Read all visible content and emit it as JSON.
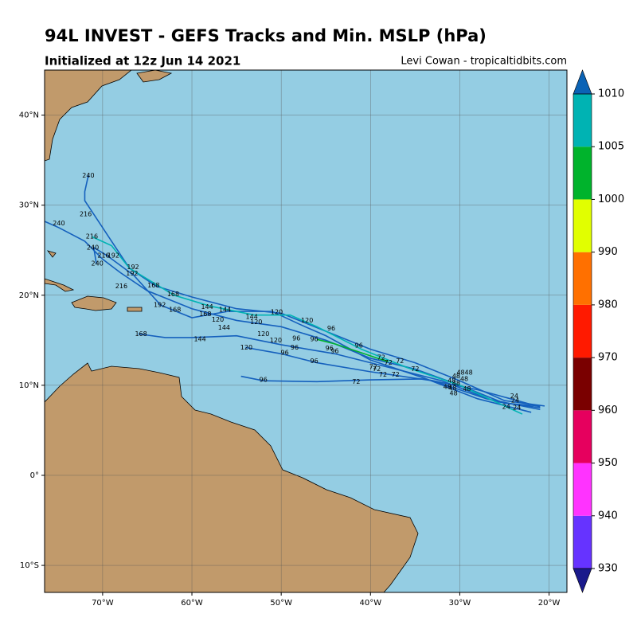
{
  "chart_data": {
    "type": "map",
    "title": "94L INVEST - GEFS Tracks and Min. MSLP (hPa)",
    "subtitle": "Initialized at 12z Jun 14 2021",
    "credit": "Levi Cowan - tropicaltidbits.com",
    "xlim": [
      -76.5,
      -18
    ],
    "ylim": [
      -13,
      45
    ],
    "xticks": [
      {
        "value": -70,
        "label": "70°W"
      },
      {
        "value": -60,
        "label": "60°W"
      },
      {
        "value": -50,
        "label": "50°W"
      },
      {
        "value": -40,
        "label": "40°W"
      },
      {
        "value": -30,
        "label": "30°W"
      },
      {
        "value": -20,
        "label": "20°W"
      }
    ],
    "yticks": [
      {
        "value": -10,
        "label": "10°S"
      },
      {
        "value": 0,
        "label": "0°"
      },
      {
        "value": 10,
        "label": "10°N"
      },
      {
        "value": 20,
        "label": "20°N"
      },
      {
        "value": 30,
        "label": "30°N"
      },
      {
        "value": 40,
        "label": "40°N"
      }
    ],
    "grid": true,
    "colorbar": {
      "ticks": [
        930,
        940,
        950,
        960,
        970,
        980,
        990,
        1000,
        1005,
        1010
      ],
      "colors": [
        "#6633ff",
        "#ff33ff",
        "#e6005e",
        "#7a0000",
        "#ff1a00",
        "#ff7000",
        "#e1ff00",
        "#00b32c",
        "#00b3b3"
      ],
      "under": "#1a1a8c",
      "over": "#0b63b5"
    },
    "tracks": [
      {
        "color": "#1560bd",
        "lon": [
          -20.5,
          -25,
          -30,
          -35,
          -40,
          -45,
          -50,
          -55,
          -60,
          -64,
          -67,
          -69,
          -71,
          -72,
          -72,
          -71.6
        ],
        "lat": [
          7.7,
          8.3,
          10.5,
          12.5,
          14,
          16,
          18,
          18.5,
          19.8,
          21,
          23,
          26,
          29,
          30.5,
          31.5,
          33.3
        ]
      },
      {
        "color": "#1560bd",
        "lon": [
          -21,
          -25,
          -30,
          -35,
          -40,
          -45,
          -50,
          -55,
          -60,
          -65,
          -68,
          -70,
          -72,
          -74.9,
          -76.5
        ],
        "lat": [
          7.7,
          8,
          10,
          11.8,
          13,
          15,
          16.5,
          17.2,
          18.5,
          20.5,
          22.5,
          24,
          26,
          27.5,
          28.2
        ]
      },
      {
        "color": "#1560bd",
        "lon": [
          -21,
          -26,
          -32,
          -38,
          -44,
          -50,
          -55,
          -60,
          -63,
          -66
        ],
        "lat": [
          7.5,
          8.2,
          10.5,
          12,
          13.5,
          14.5,
          15.5,
          15.3,
          15.3,
          15.7
        ]
      },
      {
        "color": "#1560bd",
        "lon": [
          -21,
          -27,
          -33,
          -40,
          -46,
          -50,
          -54
        ],
        "lat": [
          7.3,
          8.5,
          10.5,
          11.5,
          12.5,
          13.5,
          14.2
        ]
      },
      {
        "color": "#1560bd",
        "lon": [
          -21,
          -28,
          -34,
          -40,
          -46,
          -52,
          -54.5
        ],
        "lat": [
          7.6,
          9.5,
          10.7,
          10.6,
          10.4,
          10.5,
          11
        ]
      },
      {
        "color": "#1560bd",
        "lon": [
          -22,
          -28,
          -34,
          -40,
          -45,
          -48,
          -51,
          -56,
          -60,
          -63.5,
          -66.5,
          -69.5,
          -71,
          -70.7
        ],
        "lat": [
          7,
          8.5,
          10.8,
          12.8,
          15.5,
          16.8,
          18.2,
          18.2,
          17.5,
          18.9,
          22.2,
          24.4,
          25.3,
          23.5
        ]
      },
      {
        "color": "#00b3b3",
        "lon": [
          -23,
          -30,
          -36,
          -41,
          -46,
          -49,
          -53,
          -58,
          -62,
          -67,
          -69,
          -71.2
        ],
        "lat": [
          6.8,
          10,
          12,
          14,
          16.5,
          17.8,
          17.8,
          18.8,
          20,
          23,
          25.5,
          26.5
        ]
      },
      {
        "color": "#00b32c",
        "lon": [
          -38,
          -41,
          -44,
          -46
        ],
        "lat": [
          12.6,
          13.6,
          14.6,
          15.1
        ]
      }
    ],
    "hour_labels": [
      {
        "hour": 240,
        "lon": -71.6,
        "lat": 33.3
      },
      {
        "hour": 216,
        "lon": -71.9,
        "lat": 29.0
      },
      {
        "hour": 240,
        "lon": -74.9,
        "lat": 28.0
      },
      {
        "hour": 216,
        "lon": -71.2,
        "lat": 26.5
      },
      {
        "hour": 240,
        "lon": -71.1,
        "lat": 25.3
      },
      {
        "hour": 216,
        "lon": -69.9,
        "lat": 24.4
      },
      {
        "hour": 240,
        "lon": -70.6,
        "lat": 23.5
      },
      {
        "hour": 192,
        "lon": -68.8,
        "lat": 24.4
      },
      {
        "hour": 192,
        "lon": -66.6,
        "lat": 23.1
      },
      {
        "hour": 192,
        "lon": -66.7,
        "lat": 22.4
      },
      {
        "hour": 216,
        "lon": -67.9,
        "lat": 21.0
      },
      {
        "hour": 168,
        "lon": -64.3,
        "lat": 21.1
      },
      {
        "hour": 168,
        "lon": -62.1,
        "lat": 20.1
      },
      {
        "hour": 192,
        "lon": -63.6,
        "lat": 18.9
      },
      {
        "hour": 168,
        "lon": -61.9,
        "lat": 18.4
      },
      {
        "hour": 144,
        "lon": -58.3,
        "lat": 18.7
      },
      {
        "hour": 144,
        "lon": -56.3,
        "lat": 18.4
      },
      {
        "hour": 168,
        "lon": -58.5,
        "lat": 17.9
      },
      {
        "hour": 120,
        "lon": -57.1,
        "lat": 17.3
      },
      {
        "hour": 144,
        "lon": -53.3,
        "lat": 17.6
      },
      {
        "hour": 120,
        "lon": -52.8,
        "lat": 17.0
      },
      {
        "hour": 120,
        "lon": -50.5,
        "lat": 18.1
      },
      {
        "hour": 120,
        "lon": -47.1,
        "lat": 17.2
      },
      {
        "hour": 96,
        "lon": -44.4,
        "lat": 16.3
      },
      {
        "hour": 144,
        "lon": -56.4,
        "lat": 16.4
      },
      {
        "hour": 168,
        "lon": -65.7,
        "lat": 15.7
      },
      {
        "hour": 144,
        "lon": -59.1,
        "lat": 15.1
      },
      {
        "hour": 120,
        "lon": -52.0,
        "lat": 15.7
      },
      {
        "hour": 120,
        "lon": -50.6,
        "lat": 15.0
      },
      {
        "hour": 96,
        "lon": -48.3,
        "lat": 15.2
      },
      {
        "hour": 96,
        "lon": -46.3,
        "lat": 15.1
      },
      {
        "hour": 120,
        "lon": -53.9,
        "lat": 14.2
      },
      {
        "hour": 96,
        "lon": -48.5,
        "lat": 14.2
      },
      {
        "hour": 96,
        "lon": -49.6,
        "lat": 13.6
      },
      {
        "hour": 96,
        "lon": -44.6,
        "lat": 14.1
      },
      {
        "hour": 96,
        "lon": -44.0,
        "lat": 13.8
      },
      {
        "hour": 96,
        "lon": -41.3,
        "lat": 14.4
      },
      {
        "hour": 96,
        "lon": -46.3,
        "lat": 12.7
      },
      {
        "hour": 72,
        "lon": -38.8,
        "lat": 13.1
      },
      {
        "hour": 72,
        "lon": -38.0,
        "lat": 12.5
      },
      {
        "hour": 72,
        "lon": -36.7,
        "lat": 12.7
      },
      {
        "hour": 72,
        "lon": -39.7,
        "lat": 12.0
      },
      {
        "hour": 72,
        "lon": -39.3,
        "lat": 11.8
      },
      {
        "hour": 72,
        "lon": -38.6,
        "lat": 11.2
      },
      {
        "hour": 72,
        "lon": -37.2,
        "lat": 11.2
      },
      {
        "hour": 72,
        "lon": -35.0,
        "lat": 11.8
      },
      {
        "hour": 72,
        "lon": -41.6,
        "lat": 10.4
      },
      {
        "hour": 96,
        "lon": -52.0,
        "lat": 10.6
      },
      {
        "hour": 48,
        "lon": -29.9,
        "lat": 11.4
      },
      {
        "hour": 48,
        "lon": -29.0,
        "lat": 11.4
      },
      {
        "hour": 48,
        "lon": -30.4,
        "lat": 11.0
      },
      {
        "hour": 48,
        "lon": -29.5,
        "lat": 10.7
      },
      {
        "hour": 48,
        "lon": -30.9,
        "lat": 10.5
      },
      {
        "hour": 48,
        "lon": -30.4,
        "lat": 10.2
      },
      {
        "hour": 48,
        "lon": -31.4,
        "lat": 9.8
      },
      {
        "hour": 48,
        "lon": -30.8,
        "lat": 9.7
      },
      {
        "hour": 48,
        "lon": -29.2,
        "lat": 9.6
      },
      {
        "hour": 48,
        "lon": -30.7,
        "lat": 9.1
      },
      {
        "hour": 24,
        "lon": -23.9,
        "lat": 8.8
      },
      {
        "hour": 24,
        "lon": -23.8,
        "lat": 8.3
      },
      {
        "hour": 24,
        "lon": -24.8,
        "lat": 7.6
      },
      {
        "hour": 24,
        "lon": -23.6,
        "lat": 7.5
      }
    ]
  }
}
